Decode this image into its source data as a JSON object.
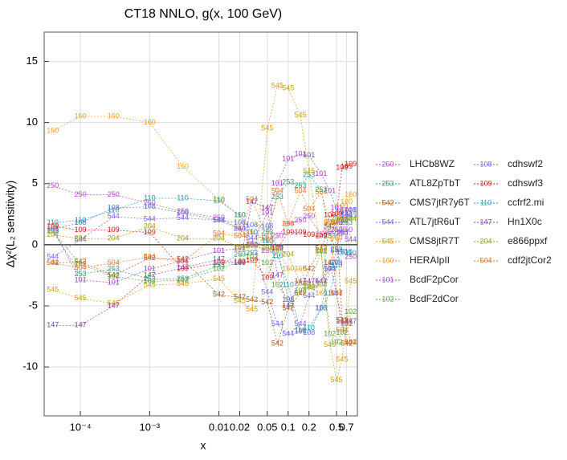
{
  "chart_data": {
    "type": "line",
    "title": "CT18 NNLO, g(x, 100 GeV)",
    "x_label": "x",
    "y_label": "Δχ²(L₂ sensitivity)",
    "xscale": "log",
    "grid": true,
    "legend": "right",
    "xlim": [
      3e-05,
      1
    ],
    "ylim": [
      -14,
      17.4
    ],
    "xticks": [
      {
        "value": 0.0001,
        "label": "10⁻⁴"
      },
      {
        "value": 0.001,
        "label": "10⁻³"
      },
      0.01,
      0.02,
      0.05,
      0.1,
      0.2,
      0.5,
      0.7
    ],
    "yticks": [
      -10,
      -5,
      0,
      5,
      10,
      15
    ],
    "x": [
      4e-05,
      0.0001,
      0.0003,
      0.001,
      0.003,
      0.01,
      0.02,
      0.03,
      0.05,
      0.07,
      0.1,
      0.15,
      0.2,
      0.3,
      0.4,
      0.5,
      0.6,
      0.7,
      0.8
    ],
    "series": [
      {
        "name": "LHCb8WZ",
        "marker": "250",
        "color": "#b050c8",
        "values": [
          4.8,
          4.1,
          4.1,
          3.4,
          2.7,
          2.2,
          1.3,
          0,
          -0.5,
          0.7,
          1.7,
          2.0,
          2.3,
          0.8,
          1.0,
          1.2,
          0.9,
          1.2,
          -1.0
        ]
      },
      {
        "name": "ATL8ZpTbT",
        "marker": "253",
        "color": "#3a9a78",
        "values": [
          1.1,
          -2.4,
          -2.0,
          -2.8,
          -2.8,
          -1.7,
          -0.8,
          -0.7,
          1.0,
          3.9,
          5.1,
          4.8,
          5.7,
          4.5,
          0.7,
          -0.4,
          2.0,
          1.8,
          2.3
        ]
      },
      {
        "name": "CMS7jtR7y6T",
        "marker": "542",
        "color": "#a8581c",
        "values": [
          -1.5,
          -1.4,
          -2.5,
          -1.1,
          -1.2,
          -4.1,
          -4.3,
          -4.5,
          -4.7,
          -8.1,
          -5.2,
          -4.0,
          -2.0,
          -0.3,
          1.5,
          1.8,
          -6.2,
          -8.1,
          -8.0
        ]
      },
      {
        "name": "ATL7jtR6uT",
        "marker": "544",
        "color": "#8060d8",
        "values": [
          -1.0,
          0.4,
          2.3,
          2.1,
          2.2,
          2.0,
          1.3,
          0.5,
          -3.9,
          -6.5,
          -7.3,
          -6.5,
          -4.2,
          -3.0,
          -2.0,
          -0.5,
          1.9,
          2.4,
          0.4
        ]
      },
      {
        "name": "CMS8jtR7T",
        "marker": "545",
        "color": "#d0a020",
        "values": [
          -3.7,
          -4.4,
          -4.8,
          -3.3,
          -3.2,
          -2.8,
          -4.6,
          -5.3,
          9.5,
          13.0,
          12.8,
          10.6,
          6.0,
          -0.6,
          -8.2,
          -11.1,
          -9.4,
          -6.4,
          -3.0
        ]
      },
      {
        "name": "HERAIpII",
        "marker": "160",
        "color": "#f0a030",
        "values": [
          9.3,
          10.5,
          10.5,
          10.0,
          6.4,
          3.7,
          2.4,
          1.0,
          0.3,
          -0.2,
          -2.0,
          -2.0,
          -3.5,
          -4.0,
          -1.5,
          0.5,
          3.1,
          3.5,
          4.1
        ]
      },
      {
        "name": "BcdF2pCor",
        "marker": "101",
        "color": "#a040c8",
        "values": [
          1.3,
          -2.9,
          -3.1,
          -2.0,
          -1.3,
          -0.5,
          -0.3,
          0.0,
          2.6,
          5.0,
          7.0,
          7.4,
          7.3,
          5.8,
          4.4,
          3.0,
          2.6,
          2.8,
          2.8
        ]
      },
      {
        "name": "BcdF2dCor",
        "marker": "102",
        "color": "#60a040",
        "values": [
          1.1,
          -1.6,
          -2.6,
          -3.0,
          -2.9,
          -2.0,
          -1.4,
          -1.0,
          -1.5,
          -3.3,
          -4.5,
          -3.8,
          -3.5,
          -0.5,
          -7.3,
          -8.0,
          -7.2,
          -6.5,
          -5.5
        ]
      },
      {
        "name": "cdhswf2",
        "marker": "108",
        "color": "#6c6cd0",
        "values": [
          1.3,
          1.8,
          3.0,
          3.1,
          2.6,
          2.0,
          1.8,
          1.6,
          1.5,
          -0.2,
          -4.5,
          -7.1,
          -7.2,
          -5.2,
          -2.0,
          -1.5,
          1.0,
          2.3,
          2.8
        ]
      },
      {
        "name": "cdhswf3",
        "marker": "109",
        "color": "#d02020",
        "values": [
          1.5,
          1.2,
          1.2,
          1.0,
          -2.0,
          -1.5,
          -1.5,
          -1.3,
          -2.7,
          -0.3,
          1.0,
          1.0,
          0.8,
          0.7,
          2.4,
          2.5,
          6.3,
          6.4,
          6.6
        ]
      },
      {
        "name": "ccfrf2.mi",
        "marker": "110",
        "color": "#2898a8",
        "values": [
          1.8,
          2.0,
          2.8,
          3.8,
          3.8,
          3.6,
          2.4,
          1.0,
          0.3,
          -0.9,
          -3.3,
          -7.0,
          -6.8,
          -5.2,
          -4.0,
          -1.7,
          -0.6,
          -0.6,
          -0.7
        ]
      },
      {
        "name": "Hn1X0c",
        "marker": "147",
        "color": "#9040a8",
        "values": [
          -6.6,
          -6.6,
          -5.0,
          -2.5,
          -1.9,
          -1.2,
          -1.5,
          3.5,
          3.0,
          -2.5,
          -5.0,
          -3.0,
          -3.0,
          -3.0,
          -1.5,
          -4.0,
          -6.3,
          -6.3,
          -6.3
        ]
      },
      {
        "name": "e866ppxf",
        "marker": "204",
        "color": "#a0a018",
        "values": [
          0.8,
          0.5,
          0.5,
          1.5,
          0.5,
          0.5,
          -0.2,
          -0.1,
          -0.3,
          -0.4,
          -0.8,
          -3.2,
          -3.4,
          -3.3,
          1.8,
          2.1,
          2.1,
          2.1,
          2.1
        ]
      },
      {
        "name": "cdf2jtCor2",
        "marker": "504",
        "color": "#e07828",
        "values": [
          -1.5,
          -1.9,
          -1.5,
          -1.0,
          -1.4,
          0.9,
          0.7,
          3.7,
          0.5,
          4.4,
          1.7,
          4.4,
          2.9,
          4.3,
          1.8,
          -4.0,
          -7.0,
          -6.3,
          -8.0
        ]
      }
    ]
  }
}
